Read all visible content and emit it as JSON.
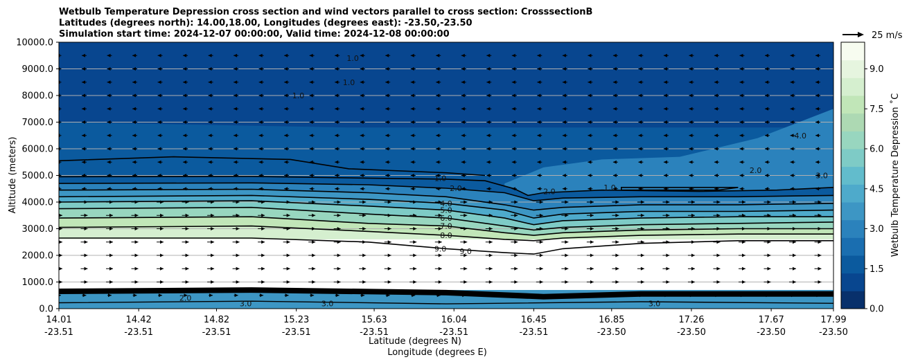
{
  "chart_data": {
    "type": "heatmap",
    "title_lines": [
      "Wetbulb Temperature Depression cross section and wind vectors parallel to cross section: CrosssectionB",
      "Latitudes (degrees north): 14.00,18.00, Longitudes (degrees east): -23.50,-23.50",
      "Simulation start time: 2024-12-07 00:00:00, Valid time: 2024-12-08 00:00:00"
    ],
    "xlabel_lat": "Latitude (degrees N)",
    "xlabel_lon": "Longitude (degrees E)",
    "ylabel": "Altitude (meters)",
    "x_range": [
      14.01,
      17.99
    ],
    "y_range": [
      0,
      10000
    ],
    "y_ticks": [
      0,
      1000,
      2000,
      3000,
      4000,
      5000,
      6000,
      7000,
      8000,
      9000,
      10000
    ],
    "y_tick_labels": [
      "0.0",
      "1000.0",
      "2000.0",
      "3000.0",
      "4000.0",
      "5000.0",
      "6000.0",
      "7000.0",
      "8000.0",
      "9000.0",
      "10000.0"
    ],
    "x_ticks": [
      {
        "lat": "14.01",
        "lon": "-23.51",
        "value": 14.01
      },
      {
        "lat": "14.42",
        "lon": "-23.51",
        "value": 14.42
      },
      {
        "lat": "14.82",
        "lon": "-23.51",
        "value": 14.82
      },
      {
        "lat": "15.23",
        "lon": "-23.51",
        "value": 15.23
      },
      {
        "lat": "15.63",
        "lon": "-23.51",
        "value": 15.63
      },
      {
        "lat": "16.04",
        "lon": "-23.51",
        "value": 16.04
      },
      {
        "lat": "16.45",
        "lon": "-23.51",
        "value": 16.45
      },
      {
        "lat": "16.85",
        "lon": "-23.50",
        "value": 16.85
      },
      {
        "lat": "17.26",
        "lon": "-23.50",
        "value": 17.26
      },
      {
        "lat": "17.67",
        "lon": "-23.50",
        "value": 17.67
      },
      {
        "lat": "17.99",
        "lon": "-23.50",
        "value": 17.99
      }
    ],
    "grid": "horizontal",
    "colorbar": {
      "label": "Wetbulb Temperature Depression ˚C",
      "range": [
        0,
        10
      ],
      "ticks": [
        0,
        1.5,
        3,
        4.5,
        6,
        7.5,
        9
      ],
      "tick_labels": [
        "0.0",
        "1.5",
        "3.0",
        "4.5",
        "6.0",
        "7.5",
        "9.0"
      ],
      "placement": "right",
      "colormap": [
        "#08306b",
        "#08468f",
        "#0b5a9e",
        "#1a6eb0",
        "#2b82bc",
        "#3d96c4",
        "#4eaacb",
        "#62bccc",
        "#7ecbc6",
        "#98d6bf",
        "#add9b3",
        "#c1e6b8",
        "#d5efcf",
        "#e6f5df",
        "#f7fcf0"
      ]
    },
    "quiver_key": {
      "label": "25 m/s",
      "placement": "top-right"
    },
    "contour_levels": [
      1,
      2,
      3,
      4,
      5,
      6,
      7,
      8,
      9
    ],
    "contour_label_texts": [
      "1.0",
      "2.0",
      "4.0",
      "5.0",
      "6.0",
      "7.0",
      "8.0",
      "9.0",
      "3.0"
    ],
    "wind": {
      "upper_direction": "southward (toward lower latitude)",
      "lower_direction": "northward (toward higher latitude)",
      "reversal_altitude_m": 4500
    }
  }
}
